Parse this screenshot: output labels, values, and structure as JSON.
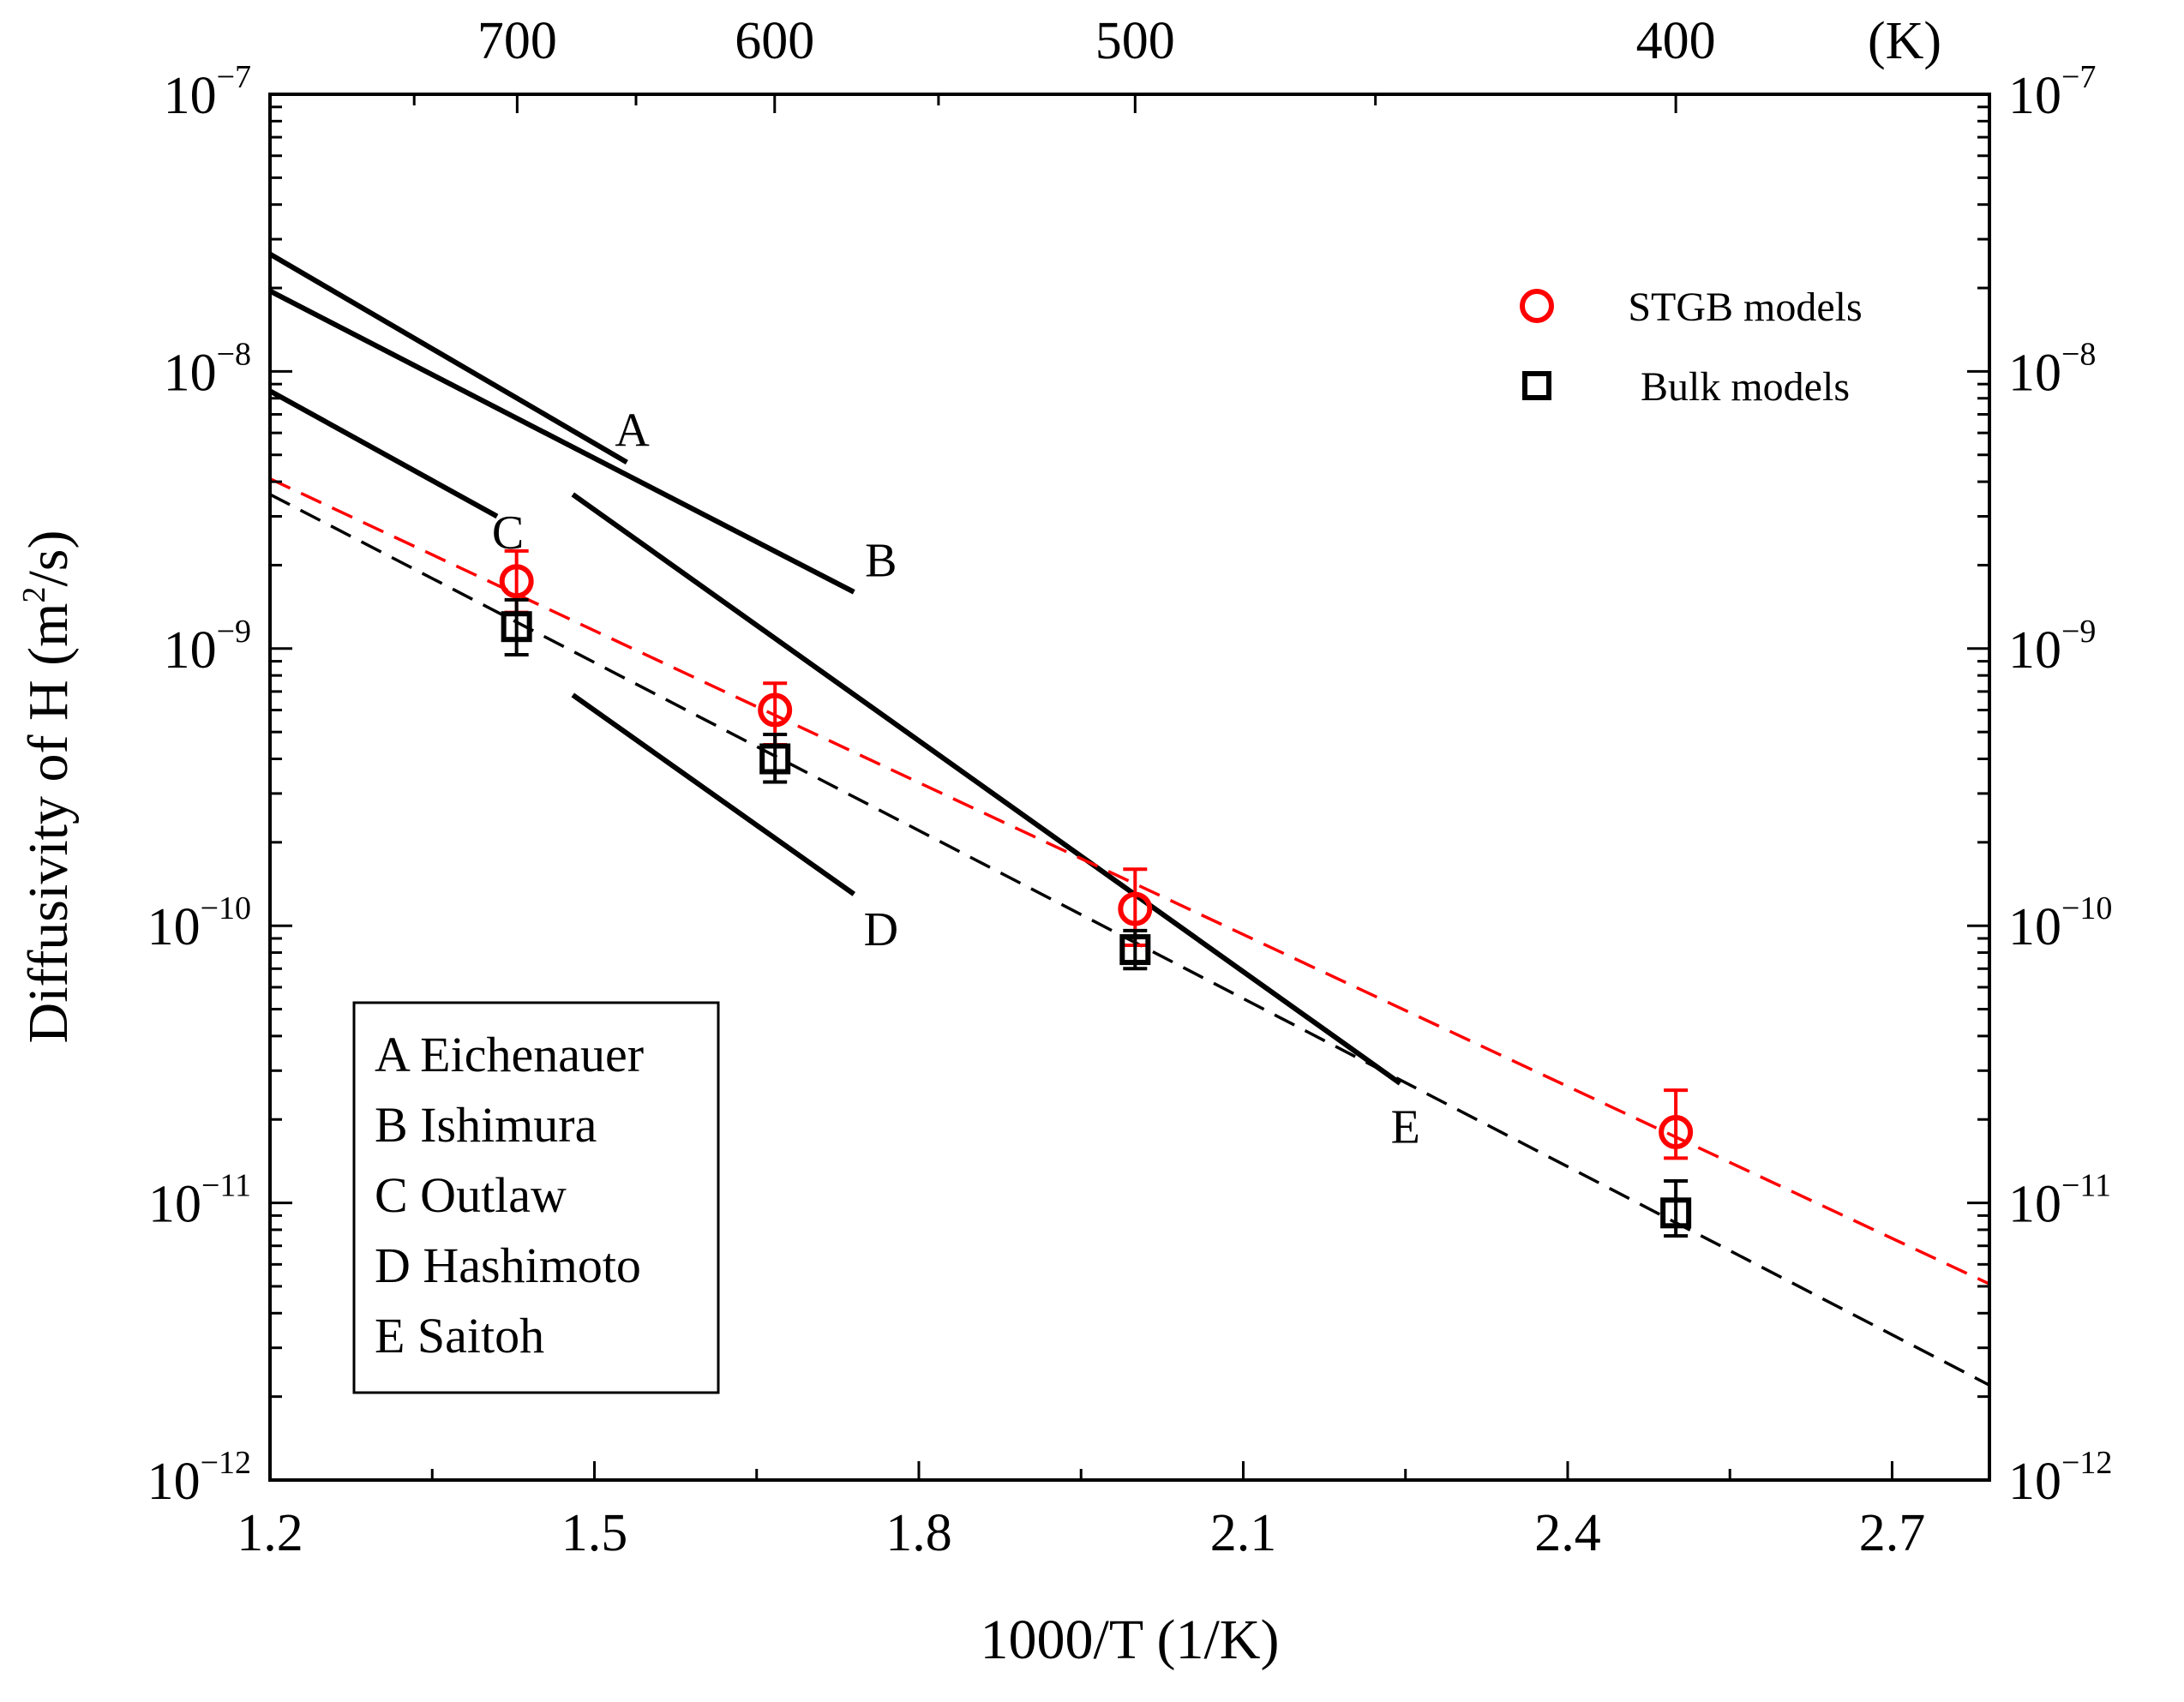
{
  "chart_data": {
    "type": "scatter",
    "title": "",
    "xlabel": "1000/T (1/K)",
    "ylabel": "Diffusivity of H",
    "ylabel_unit": "(m²/s)",
    "y_unit_base": "(m",
    "y_unit_exp": "2",
    "y_unit_tail": "/s)",
    "xlim": [
      1.2,
      2.79
    ],
    "ylim": [
      1e-12,
      1e-07
    ],
    "yscale": "log",
    "grid": false,
    "legend_position": "top-right",
    "x_ticks": [
      {
        "v": 1.2,
        "label": "1.2"
      },
      {
        "v": 1.5,
        "label": "1.5"
      },
      {
        "v": 1.8,
        "label": "1.8"
      },
      {
        "v": 2.1,
        "label": "2.1"
      },
      {
        "v": 2.4,
        "label": "2.4"
      },
      {
        "v": 2.7,
        "label": "2.7"
      }
    ],
    "y_ticks": [
      {
        "exp": -12,
        "base": "10",
        "sup": "−12"
      },
      {
        "exp": -11,
        "base": "10",
        "sup": "−11"
      },
      {
        "exp": -10,
        "base": "10",
        "sup": "−10"
      },
      {
        "exp": -9,
        "base": "10",
        "sup": "−9"
      },
      {
        "exp": -8,
        "base": "10",
        "sup": "−8"
      },
      {
        "exp": -7,
        "base": "10",
        "sup": "−7"
      }
    ],
    "top_axis": {
      "unit_label": "(K)",
      "ticks": [
        {
          "T": 700,
          "label": "700"
        },
        {
          "T": 600,
          "label": "600"
        },
        {
          "T": 500,
          "label": "500"
        },
        {
          "T": 400,
          "label": "400"
        }
      ]
    },
    "series": [
      {
        "name": "STGB models",
        "marker": "circle",
        "color": "#ff0000",
        "points": [
          {
            "x": 1.428,
            "y": 1.75e-09,
            "err_low": 1.35e-09,
            "err_high": 2.25e-09
          },
          {
            "x": 1.667,
            "y": 6e-10,
            "err_low": 4.5e-10,
            "err_high": 7.5e-10
          },
          {
            "x": 2.0,
            "y": 1.15e-10,
            "err_low": 8.5e-11,
            "err_high": 1.6e-10
          },
          {
            "x": 2.5,
            "y": 1.8e-11,
            "err_low": 1.45e-11,
            "err_high": 2.55e-11
          }
        ]
      },
      {
        "name": "Bulk models",
        "marker": "square",
        "color": "#000000",
        "points": [
          {
            "x": 1.428,
            "y": 1.2e-09,
            "err_low": 9.5e-10,
            "err_high": 1.5e-09
          },
          {
            "x": 1.667,
            "y": 4e-10,
            "err_low": 3.3e-10,
            "err_high": 4.9e-10
          },
          {
            "x": 2.0,
            "y": 8.2e-11,
            "err_low": 7e-11,
            "err_high": 9.6e-11
          },
          {
            "x": 2.5,
            "y": 9.2e-12,
            "err_low": 7.6e-12,
            "err_high": 1.2e-11
          }
        ]
      }
    ],
    "fit_lines": [
      {
        "color": "#ff0000",
        "style": "dashed",
        "x": [
          1.2,
          2.79
        ],
        "y": [
          4.1e-09,
          5.1e-12
        ]
      },
      {
        "color": "#000000",
        "style": "dashed",
        "x": [
          1.2,
          2.79
        ],
        "y": [
          3.6e-09,
          2.2e-12
        ]
      }
    ],
    "reference_curves": [
      {
        "id": "A",
        "name": "Eichenauer",
        "x": [
          1.2,
          1.53
        ],
        "y": [
          2.65e-08,
          4.7e-09
        ],
        "label_at": [
          1.535,
          6.2e-09
        ]
      },
      {
        "id": "B",
        "name": "Ishimura",
        "x": [
          1.2,
          1.74
        ],
        "y": [
          1.95e-08,
          1.6e-09
        ],
        "label_at": [
          1.765,
          2.1e-09
        ]
      },
      {
        "id": "C",
        "name": "Outlaw",
        "x": [
          1.2,
          1.41
        ],
        "y": [
          8.5e-09,
          3e-09
        ],
        "label_at": [
          1.42,
          2.65e-09
        ]
      },
      {
        "id": "D",
        "name": "Hashimoto",
        "x": [
          1.48,
          1.74
        ],
        "y": [
          6.8e-10,
          1.3e-10
        ],
        "label_at": [
          1.765,
          9.8e-11
        ]
      },
      {
        "id": "E",
        "name": "Saitoh",
        "x": [
          1.48,
          2.245
        ],
        "y": [
          3.6e-09,
          2.7e-11
        ],
        "label_at": [
          2.25,
          1.9e-11
        ]
      }
    ],
    "ref_legend": [
      "A Eichenauer",
      "B Ishimura",
      "C Outlaw",
      "D Hashimoto",
      "E Saitoh"
    ]
  }
}
